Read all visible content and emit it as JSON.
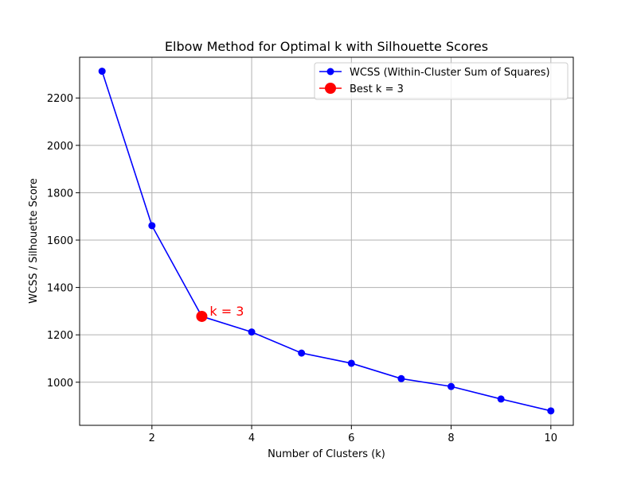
{
  "chart_data": {
    "type": "line",
    "title": "Elbow Method for Optimal k with Silhouette Scores",
    "xlabel": "Number of Clusters (k)",
    "ylabel": "WCSS / Silhouette Score",
    "xlim": [
      0.55,
      10.45
    ],
    "ylim": [
      818,
      2372
    ],
    "xticks": [
      2,
      4,
      6,
      8,
      10
    ],
    "yticks": [
      1000,
      1200,
      1400,
      1600,
      1800,
      2000,
      2200
    ],
    "grid": true,
    "legend_position": "top-right",
    "series": [
      {
        "name": "WCSS (Within-Cluster Sum of Squares)",
        "color": "#0000ff",
        "marker": "circle",
        "x": [
          1,
          2,
          3,
          4,
          5,
          6,
          7,
          8,
          9,
          10
        ],
        "y": [
          2313,
          1661,
          1278,
          1212,
          1123,
          1080,
          1015,
          982,
          929,
          879
        ]
      }
    ],
    "highlight": {
      "name": "Best k = 3",
      "color": "#ff0000",
      "x": 3,
      "y": 1278
    },
    "annotations": [
      {
        "text": "k = 3",
        "x": 3,
        "y": 1278,
        "color": "#ff0000"
      }
    ]
  }
}
